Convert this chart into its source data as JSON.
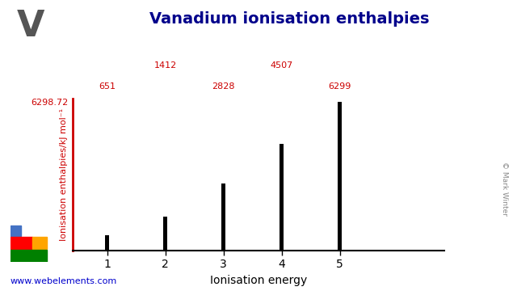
{
  "title": "Vanadium ionisation enthalpies",
  "element_symbol": "V",
  "xlabel": "Ionisation energy",
  "ylabel": "Ionisation enthalpies/kJ mol⁻¹",
  "ionisation_energies": [
    1,
    2,
    3,
    4,
    5
  ],
  "ionisation_values": [
    651,
    1412,
    2828,
    4507,
    6299
  ],
  "ymax": 6298.72,
  "ymax_label": "6298.72",
  "bar_color": "#000000",
  "bar_width": 0.07,
  "axis_color": "#cc0000",
  "title_color": "#00008B",
  "symbol_color": "#555555",
  "value_labels": [
    "651",
    "1412",
    "2828",
    "4507",
    "6299"
  ],
  "value_row_high": [
    false,
    true,
    false,
    true,
    false
  ],
  "background_color": "#ffffff",
  "website_text": "www.webelements.com",
  "website_color": "#0000cc",
  "copyright_text": "© Mark Winter",
  "periodic_blue": "#4472C4",
  "periodic_red": "#FF0000",
  "periodic_orange": "#FFA500",
  "periodic_green": "#008000"
}
